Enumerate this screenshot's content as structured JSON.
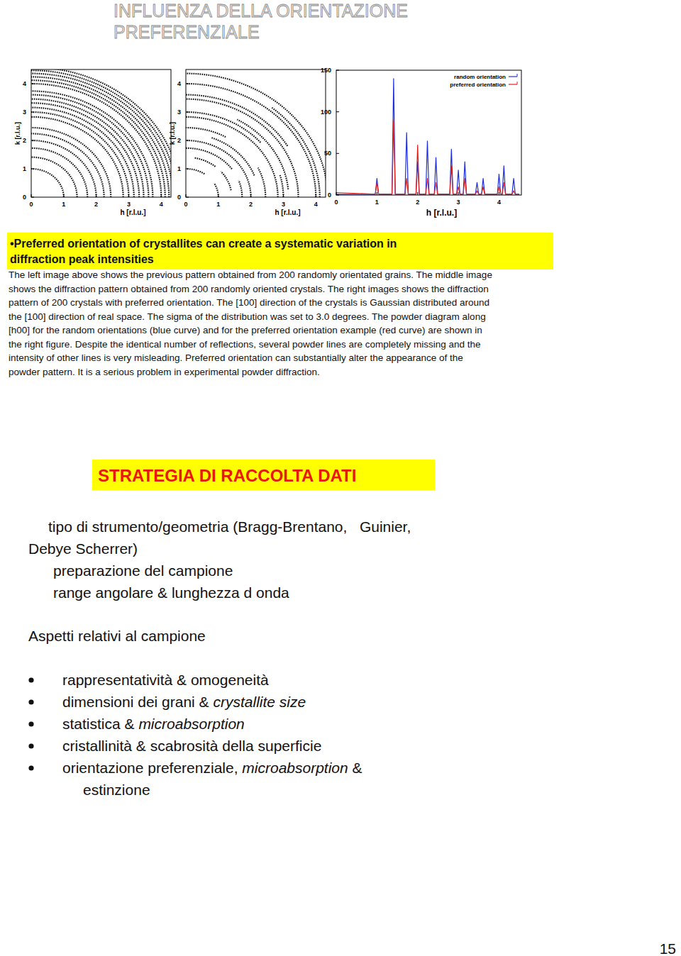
{
  "header": {
    "title_lines": [
      "INFLUENZA DELLA ORIENTAZIONE",
      "PREFERENZIALE"
    ]
  },
  "figures": [
    {
      "type": "rings",
      "x_label": "h [r.l.u.]",
      "y_label": "k [r.l.u.]",
      "xlim": [
        0,
        4.3
      ],
      "ylim": [
        0,
        4.5
      ],
      "xticks": [
        0,
        1,
        2,
        3,
        4
      ],
      "yticks": [
        0,
        1,
        2,
        3,
        4
      ],
      "rings": [
        1,
        1.41,
        1.73,
        2,
        2.24,
        2.45,
        2.83,
        3,
        3.16,
        3.32,
        3.46,
        3.61,
        3.74,
        4,
        4.12,
        4.24,
        4.36,
        4.47,
        4.58
      ]
    },
    {
      "type": "arcs",
      "x_label": "h [r.l.u.]",
      "y_label": "k [r.l.u.]",
      "xlim": [
        0,
        4.3
      ],
      "ylim": [
        0,
        4.5
      ],
      "xticks": [
        0,
        1,
        2,
        3,
        4
      ],
      "yticks": [
        0,
        1,
        2,
        3,
        4
      ],
      "arcs": [
        {
          "r": 1,
          "segments": [
            [
              0,
              30
            ],
            [
              55,
              90
            ]
          ]
        },
        {
          "r": 1.41,
          "segments": [
            [
              10,
              40
            ],
            [
              50,
              80
            ]
          ]
        },
        {
          "r": 1.73,
          "segments": [
            [
              0,
              20
            ],
            [
              35,
              90
            ]
          ]
        },
        {
          "r": 2,
          "segments": [
            [
              0,
              90
            ]
          ]
        },
        {
          "r": 2.24,
          "segments": [
            [
              20,
              70
            ]
          ]
        },
        {
          "r": 2.45,
          "segments": [
            [
              0,
              25
            ],
            [
              60,
              90
            ]
          ]
        },
        {
          "r": 2.83,
          "segments": [
            [
              0,
              90
            ]
          ]
        },
        {
          "r": 3,
          "segments": [
            [
              0,
              15
            ],
            [
              40,
              90
            ]
          ]
        },
        {
          "r": 3.16,
          "segments": [
            [
              5,
              60
            ]
          ]
        },
        {
          "r": 3.46,
          "segments": [
            [
              0,
              90
            ]
          ]
        },
        {
          "r": 3.61,
          "segments": [
            [
              30,
              90
            ]
          ]
        },
        {
          "r": 4,
          "segments": [
            [
              0,
              90
            ]
          ]
        },
        {
          "r": 4.12,
          "segments": [
            [
              0,
              50
            ]
          ]
        },
        {
          "r": 4.36,
          "segments": [
            [
              0,
              90
            ]
          ]
        }
      ]
    }
  ],
  "chart_data": {
    "type": "line",
    "x_label": "h [r.l.u.]",
    "xlim": [
      0,
      4.55
    ],
    "xticks": [
      0,
      1,
      2,
      3,
      4
    ],
    "ylim": [
      0,
      150
    ],
    "yticks": [
      0,
      50,
      100,
      150
    ],
    "legend": "upper right",
    "x": [
      0,
      0.96,
      1.0,
      1.04,
      1.37,
      1.41,
      1.45,
      1.69,
      1.73,
      1.77,
      1.96,
      2.0,
      2.04,
      2.2,
      2.24,
      2.28,
      2.41,
      2.45,
      2.49,
      2.79,
      2.83,
      2.87,
      2.96,
      3.0,
      3.04,
      3.12,
      3.16,
      3.2,
      3.42,
      3.46,
      3.5,
      3.57,
      3.61,
      3.65,
      3.96,
      4.0,
      4.04,
      4.08,
      4.12,
      4.16,
      4.32,
      4.36,
      4.4,
      4.5
    ],
    "series": [
      {
        "name": "random orientation",
        "color": "#1f2fe0",
        "values": [
          1,
          1,
          20,
          1,
          1,
          140,
          1,
          1,
          75,
          1,
          1,
          40,
          1,
          1,
          65,
          1,
          1,
          45,
          1,
          1,
          55,
          1,
          1,
          30,
          1,
          1,
          40,
          1,
          1,
          15,
          1,
          1,
          20,
          1,
          1,
          25,
          1,
          1,
          35,
          1,
          1,
          20,
          1,
          1
        ]
      },
      {
        "name": "preferred orientation",
        "color": "#e0201a",
        "values": [
          3,
          1,
          15,
          1,
          1,
          90,
          1,
          1,
          20,
          1,
          1,
          60,
          1,
          1,
          20,
          1,
          1,
          15,
          1,
          1,
          35,
          1,
          1,
          10,
          1,
          1,
          20,
          1,
          1,
          5,
          1,
          1,
          10,
          1,
          1,
          10,
          1,
          1,
          15,
          1,
          1,
          5,
          1,
          1
        ]
      }
    ]
  },
  "highlight": {
    "lines": [
      "•Preferred orientation of crystallites can create a systematic variation in",
      "diffraction peak intensities"
    ]
  },
  "caption": {
    "lines": [
      "The left image above shows the previous pattern obtained from 200 randomly orientated grains. The middle image",
      "shows the diffraction pattern obtained from 200 randomly oriented crystals. The right images shows the diffraction",
      "pattern of 200 crystals with preferred orientation. The [100] direction of the crystals is Gaussian distributed around",
      "the [100] direction of real space. The sigma of the distribution was set to 3.0 degrees. The powder diagram along",
      "[h00] for the random orientations (blue curve) and for the preferred orientation example (red curve) are shown in",
      "the right figure. Despite the identical number of reflections, several powder lines are completely missing and the",
      "intensity of other lines is very misleading. Preferred orientation can substantially alter the appearance of the",
      "powder pattern. It is a serious problem in experimental powder diffraction."
    ]
  },
  "section": {
    "title": "STRATEGIA DI RACCOLTA DATI",
    "lines": [
      "tipo di strumento/geometria (Bragg-Brentano,   Guinier,",
      "Debye Scherrer)",
      "preparazione del campione",
      "range angolare & lunghezza d onda"
    ]
  },
  "subsection": {
    "title": "Aspetti relativi al campione",
    "items": [
      [
        [
          {
            "text": "rappresentatività & omogeneità"
          }
        ]
      ],
      [
        [
          {
            "text": "dimensioni dei grani & "
          },
          {
            "text": "crystallite size",
            "italic": true
          }
        ]
      ],
      [
        [
          {
            "text": "statistica & "
          },
          {
            "text": "microabsorption",
            "italic": true
          }
        ]
      ],
      [
        [
          {
            "text": "cristallinità & scabrosità della superficie"
          }
        ]
      ],
      [
        [
          {
            "text": "orientazione preferenziale, "
          },
          {
            "text": "microabsorption",
            "italic": true
          },
          {
            "text": " &"
          }
        ],
        [
          {
            "text": "estinzione"
          }
        ]
      ]
    ]
  },
  "page_number": "15"
}
